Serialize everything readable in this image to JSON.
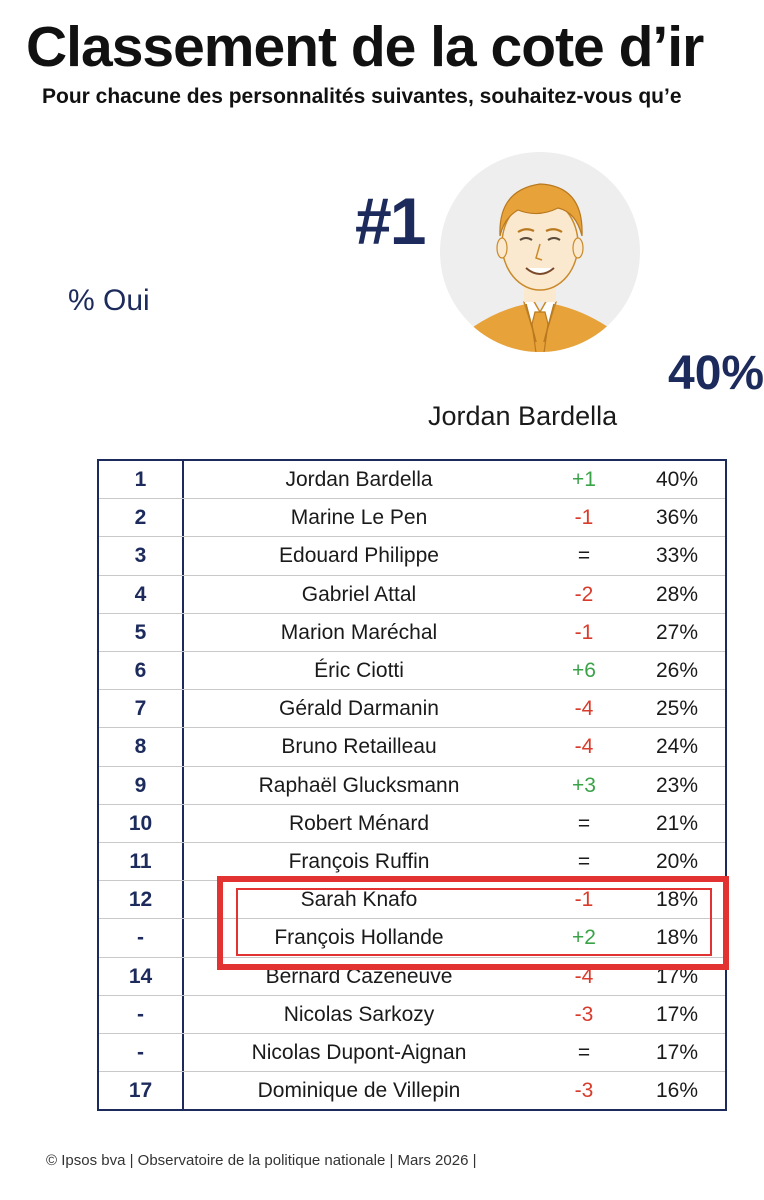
{
  "header": {
    "title": "Classement de la cote d’ir",
    "subtitle": "Pour chacune des personnalités suivantes, souhaitez-vous qu’e"
  },
  "legend_label": "% Oui",
  "leader": {
    "rank_label": "#1",
    "name": "Jordan Bardella",
    "value_label": "40%"
  },
  "table": {
    "rows": [
      {
        "rank": "1",
        "name": "Jordan Bardella",
        "delta": "+1",
        "value": "40%",
        "trend": "up"
      },
      {
        "rank": "2",
        "name": "Marine Le Pen",
        "delta": "-1",
        "value": "36%",
        "trend": "down"
      },
      {
        "rank": "3",
        "name": "Edouard Philippe",
        "delta": "=",
        "value": "33%",
        "trend": "flat"
      },
      {
        "rank": "4",
        "name": "Gabriel Attal",
        "delta": "-2",
        "value": "28%",
        "trend": "down"
      },
      {
        "rank": "5",
        "name": "Marion Maréchal",
        "delta": "-1",
        "value": "27%",
        "trend": "down"
      },
      {
        "rank": "6",
        "name": "Éric Ciotti",
        "delta": "+6",
        "value": "26%",
        "trend": "up"
      },
      {
        "rank": "7",
        "name": "Gérald Darmanin",
        "delta": "-4",
        "value": "25%",
        "trend": "down"
      },
      {
        "rank": "8",
        "name": "Bruno Retailleau",
        "delta": "-4",
        "value": "24%",
        "trend": "down"
      },
      {
        "rank": "9",
        "name": "Raphaël Glucksmann",
        "delta": "+3",
        "value": "23%",
        "trend": "up"
      },
      {
        "rank": "10",
        "name": "Robert Ménard",
        "delta": "=",
        "value": "21%",
        "trend": "flat"
      },
      {
        "rank": "11",
        "name": "François Ruffin",
        "delta": "=",
        "value": "20%",
        "trend": "flat"
      },
      {
        "rank": "12",
        "name": "Sarah Knafo",
        "delta": "-1",
        "value": "18%",
        "trend": "down"
      },
      {
        "rank": "-",
        "name": "François Hollande",
        "delta": "+2",
        "value": "18%",
        "trend": "up"
      },
      {
        "rank": "14",
        "name": "Bernard Cazeneuve",
        "delta": "-4",
        "value": "17%",
        "trend": "down"
      },
      {
        "rank": "-",
        "name": "Nicolas Sarkozy",
        "delta": "-3",
        "value": "17%",
        "trend": "down"
      },
      {
        "rank": "-",
        "name": "Nicolas Dupont-Aignan",
        "delta": "=",
        "value": "17%",
        "trend": "flat"
      },
      {
        "rank": "17",
        "name": "Dominique de Villepin",
        "delta": "-3",
        "value": "16%",
        "trend": "down"
      }
    ]
  },
  "highlight": {
    "color": "#e23232"
  },
  "colors": {
    "navy": "#1c2a5c",
    "up": "#3aa348",
    "down": "#d93b2b",
    "portrait_orange": "#e8a23a"
  },
  "footer": {
    "text": "© Ipsos bva | Observatoire de la politique nationale | Mars 2026 |"
  }
}
